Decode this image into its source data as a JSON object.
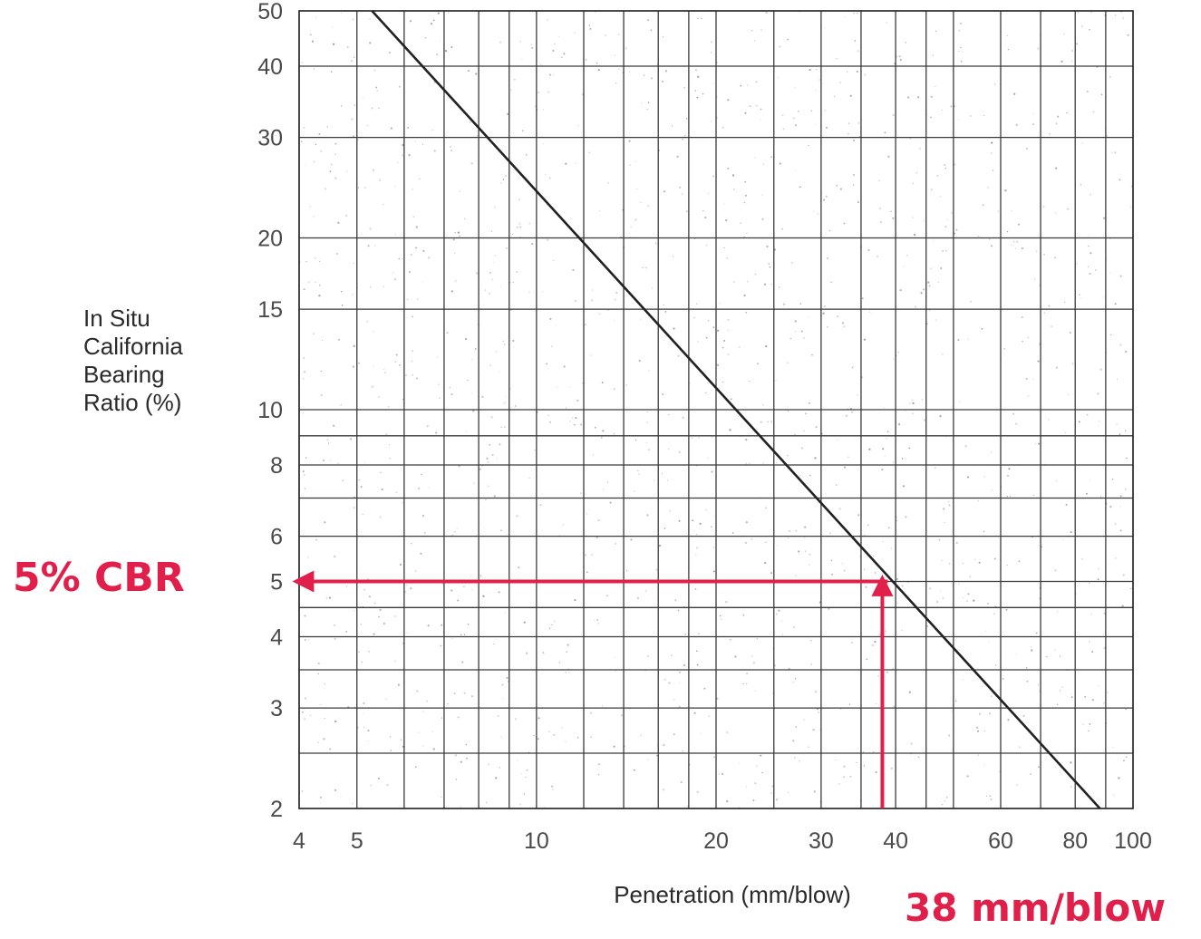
{
  "chart_data": {
    "type": "line",
    "xlabel": "Penetration (mm/blow)",
    "ylabel_lines": [
      "In Situ",
      "California",
      "Bearing",
      "Ratio (%)"
    ],
    "x_scale": "log",
    "y_scale": "log",
    "xlim": [
      4,
      100
    ],
    "ylim": [
      2,
      50
    ],
    "x_ticks": [
      4,
      5,
      10,
      20,
      30,
      40,
      60,
      80,
      100
    ],
    "x_tick_labels": [
      "4",
      "5",
      "10",
      "20",
      "30",
      "40",
      "60",
      "80",
      "100"
    ],
    "y_ticks": [
      2,
      3,
      4,
      5,
      6,
      8,
      10,
      15,
      20,
      30,
      40,
      50
    ],
    "y_tick_labels": [
      "2",
      "3",
      "4",
      "5",
      "6",
      "8",
      "10",
      "15",
      "20",
      "30",
      "40",
      "50"
    ],
    "x_gridlines": [
      4,
      5,
      6,
      7,
      8,
      9,
      10,
      12,
      14,
      16,
      18,
      20,
      25,
      30,
      35,
      40,
      45,
      50,
      60,
      70,
      80,
      90,
      100
    ],
    "y_gridlines": [
      2,
      2.5,
      3,
      3.5,
      4,
      4.5,
      5,
      6,
      7,
      8,
      9,
      10,
      15,
      20,
      30,
      40,
      50
    ],
    "grid": true,
    "series": [
      {
        "points": [
          [
            5.3,
            50
          ],
          [
            88,
            2
          ]
        ],
        "color": "#222222"
      }
    ],
    "annotations": {
      "color": "#e0204a",
      "read_x": 38,
      "read_y": 5,
      "y_callout": "5% CBR",
      "x_callout": "38 mm/blow"
    }
  }
}
